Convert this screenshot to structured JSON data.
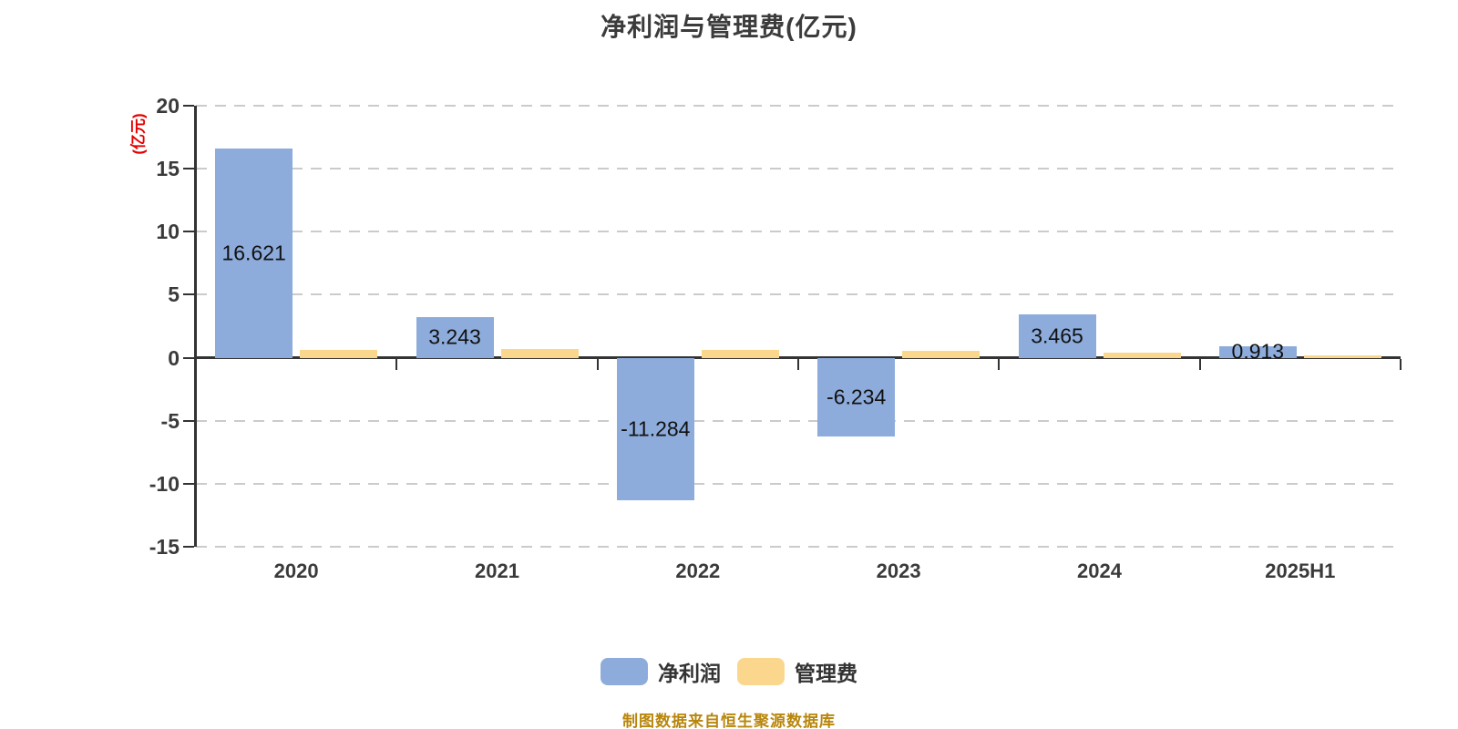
{
  "title": "净利润与管理费(亿元)",
  "y_axis_name": "(亿元)",
  "footer": {
    "source_text": "制图数据来自恒生聚源数据库"
  },
  "colors": {
    "title": "#3b3b3b",
    "axis": "#333333",
    "gridline": "#cbcbcb",
    "y_axis_name": "#e60000",
    "bar_label": "#111111",
    "source_note": "#b8860b",
    "net_profit_bar": "#8dacdc",
    "management_fee_bar": "#fbd78e"
  },
  "chart_data": {
    "type": "bar",
    "title": "净利润与管理费(亿元)",
    "categories": [
      "2020",
      "2021",
      "2022",
      "2023",
      "2024",
      "2025H1"
    ],
    "series": [
      {
        "name": "净利润",
        "color": "#8dacdc",
        "values": [
          16.621,
          3.243,
          -11.284,
          -6.234,
          3.465,
          0.913
        ],
        "labels": [
          "16.621",
          "3.243",
          "-11.284",
          "-6.234",
          "3.465",
          "0.913"
        ]
      },
      {
        "name": "管理费",
        "color": "#fbd78e",
        "values": [
          0.65,
          0.72,
          0.65,
          0.58,
          0.4,
          0.18
        ],
        "labels": null
      }
    ],
    "xlabel": "",
    "ylabel": "(亿元)",
    "ylim": [
      -15,
      20
    ],
    "y_ticks": [
      20,
      15,
      10,
      5,
      0,
      -5,
      -10,
      -15
    ],
    "grid": "horizontal dashed",
    "legend_position": "bottom",
    "value_label_position": "inside-center"
  }
}
